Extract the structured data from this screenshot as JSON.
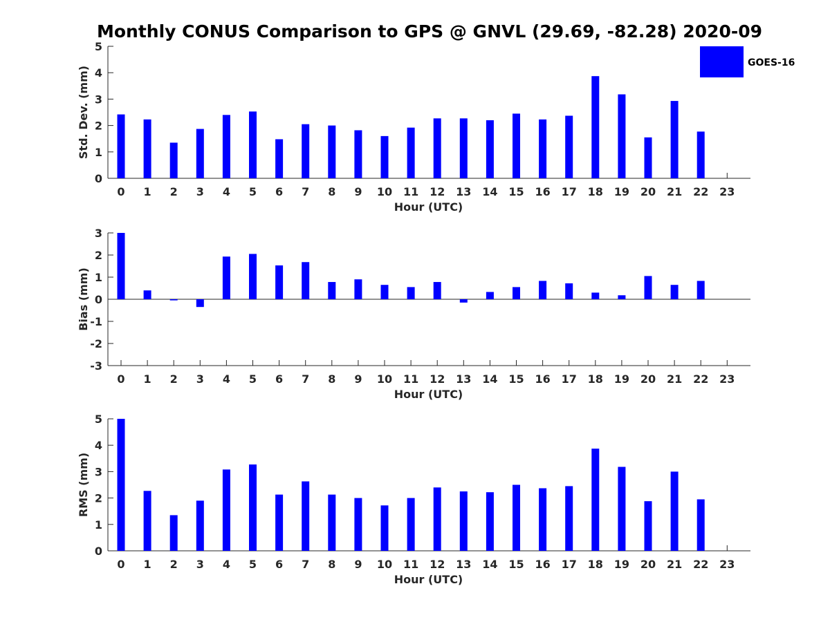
{
  "title": "Monthly CONUS Comparison to GPS @ GNVL (29.69, -82.28) 2020-09",
  "legend": {
    "label": "GOES-16",
    "color": "#0000ff"
  },
  "chart_data": [
    {
      "type": "bar",
      "xlabel": "Hour (UTC)",
      "ylabel": "Std. Dev. (mm)",
      "ylim": [
        0,
        5
      ],
      "yticks": [
        "0",
        "1",
        "2",
        "3",
        "4",
        "5"
      ],
      "categories": [
        "0",
        "1",
        "2",
        "3",
        "4",
        "5",
        "6",
        "7",
        "8",
        "9",
        "10",
        "11",
        "12",
        "13",
        "14",
        "15",
        "16",
        "17",
        "18",
        "19",
        "20",
        "21",
        "22",
        "23"
      ],
      "series": [
        {
          "name": "GOES-16",
          "color": "#0000ff",
          "values": [
            2.42,
            2.23,
            1.35,
            1.87,
            2.4,
            2.53,
            1.48,
            2.05,
            2.0,
            1.82,
            1.6,
            1.92,
            2.27,
            2.27,
            2.2,
            2.45,
            2.23,
            2.37,
            3.87,
            3.18,
            1.55,
            2.93,
            1.77,
            null
          ]
        }
      ]
    },
    {
      "type": "bar",
      "xlabel": "Hour (UTC)",
      "ylabel": "Bias (mm)",
      "ylim": [
        -3,
        3
      ],
      "yticks": [
        "-3",
        "-2",
        "-1",
        "0",
        "1",
        "2",
        "3"
      ],
      "categories": [
        "0",
        "1",
        "2",
        "3",
        "4",
        "5",
        "6",
        "7",
        "8",
        "9",
        "10",
        "11",
        "12",
        "13",
        "14",
        "15",
        "16",
        "17",
        "18",
        "19",
        "20",
        "21",
        "22",
        "23"
      ],
      "series": [
        {
          "name": "GOES-16",
          "color": "#0000ff",
          "values": [
            3.0,
            0.4,
            -0.05,
            -0.35,
            1.93,
            2.05,
            1.53,
            1.68,
            0.78,
            0.9,
            0.65,
            0.55,
            0.78,
            -0.15,
            0.33,
            0.55,
            0.83,
            0.72,
            0.3,
            0.18,
            1.05,
            0.65,
            0.83,
            null
          ]
        }
      ]
    },
    {
      "type": "bar",
      "xlabel": "Hour (UTC)",
      "ylabel": "RMS (mm)",
      "ylim": [
        0,
        5
      ],
      "yticks": [
        "0",
        "1",
        "2",
        "3",
        "4",
        "5"
      ],
      "categories": [
        "0",
        "1",
        "2",
        "3",
        "4",
        "5",
        "6",
        "7",
        "8",
        "9",
        "10",
        "11",
        "12",
        "13",
        "14",
        "15",
        "16",
        "17",
        "18",
        "19",
        "20",
        "21",
        "22",
        "23"
      ],
      "series": [
        {
          "name": "GOES-16",
          "color": "#0000ff",
          "values": [
            5.0,
            2.27,
            1.35,
            1.9,
            3.08,
            3.27,
            2.13,
            2.63,
            2.13,
            2.0,
            1.72,
            2.0,
            2.4,
            2.25,
            2.22,
            2.5,
            2.37,
            2.45,
            3.87,
            3.18,
            1.88,
            3.0,
            1.95,
            null
          ]
        }
      ]
    }
  ]
}
